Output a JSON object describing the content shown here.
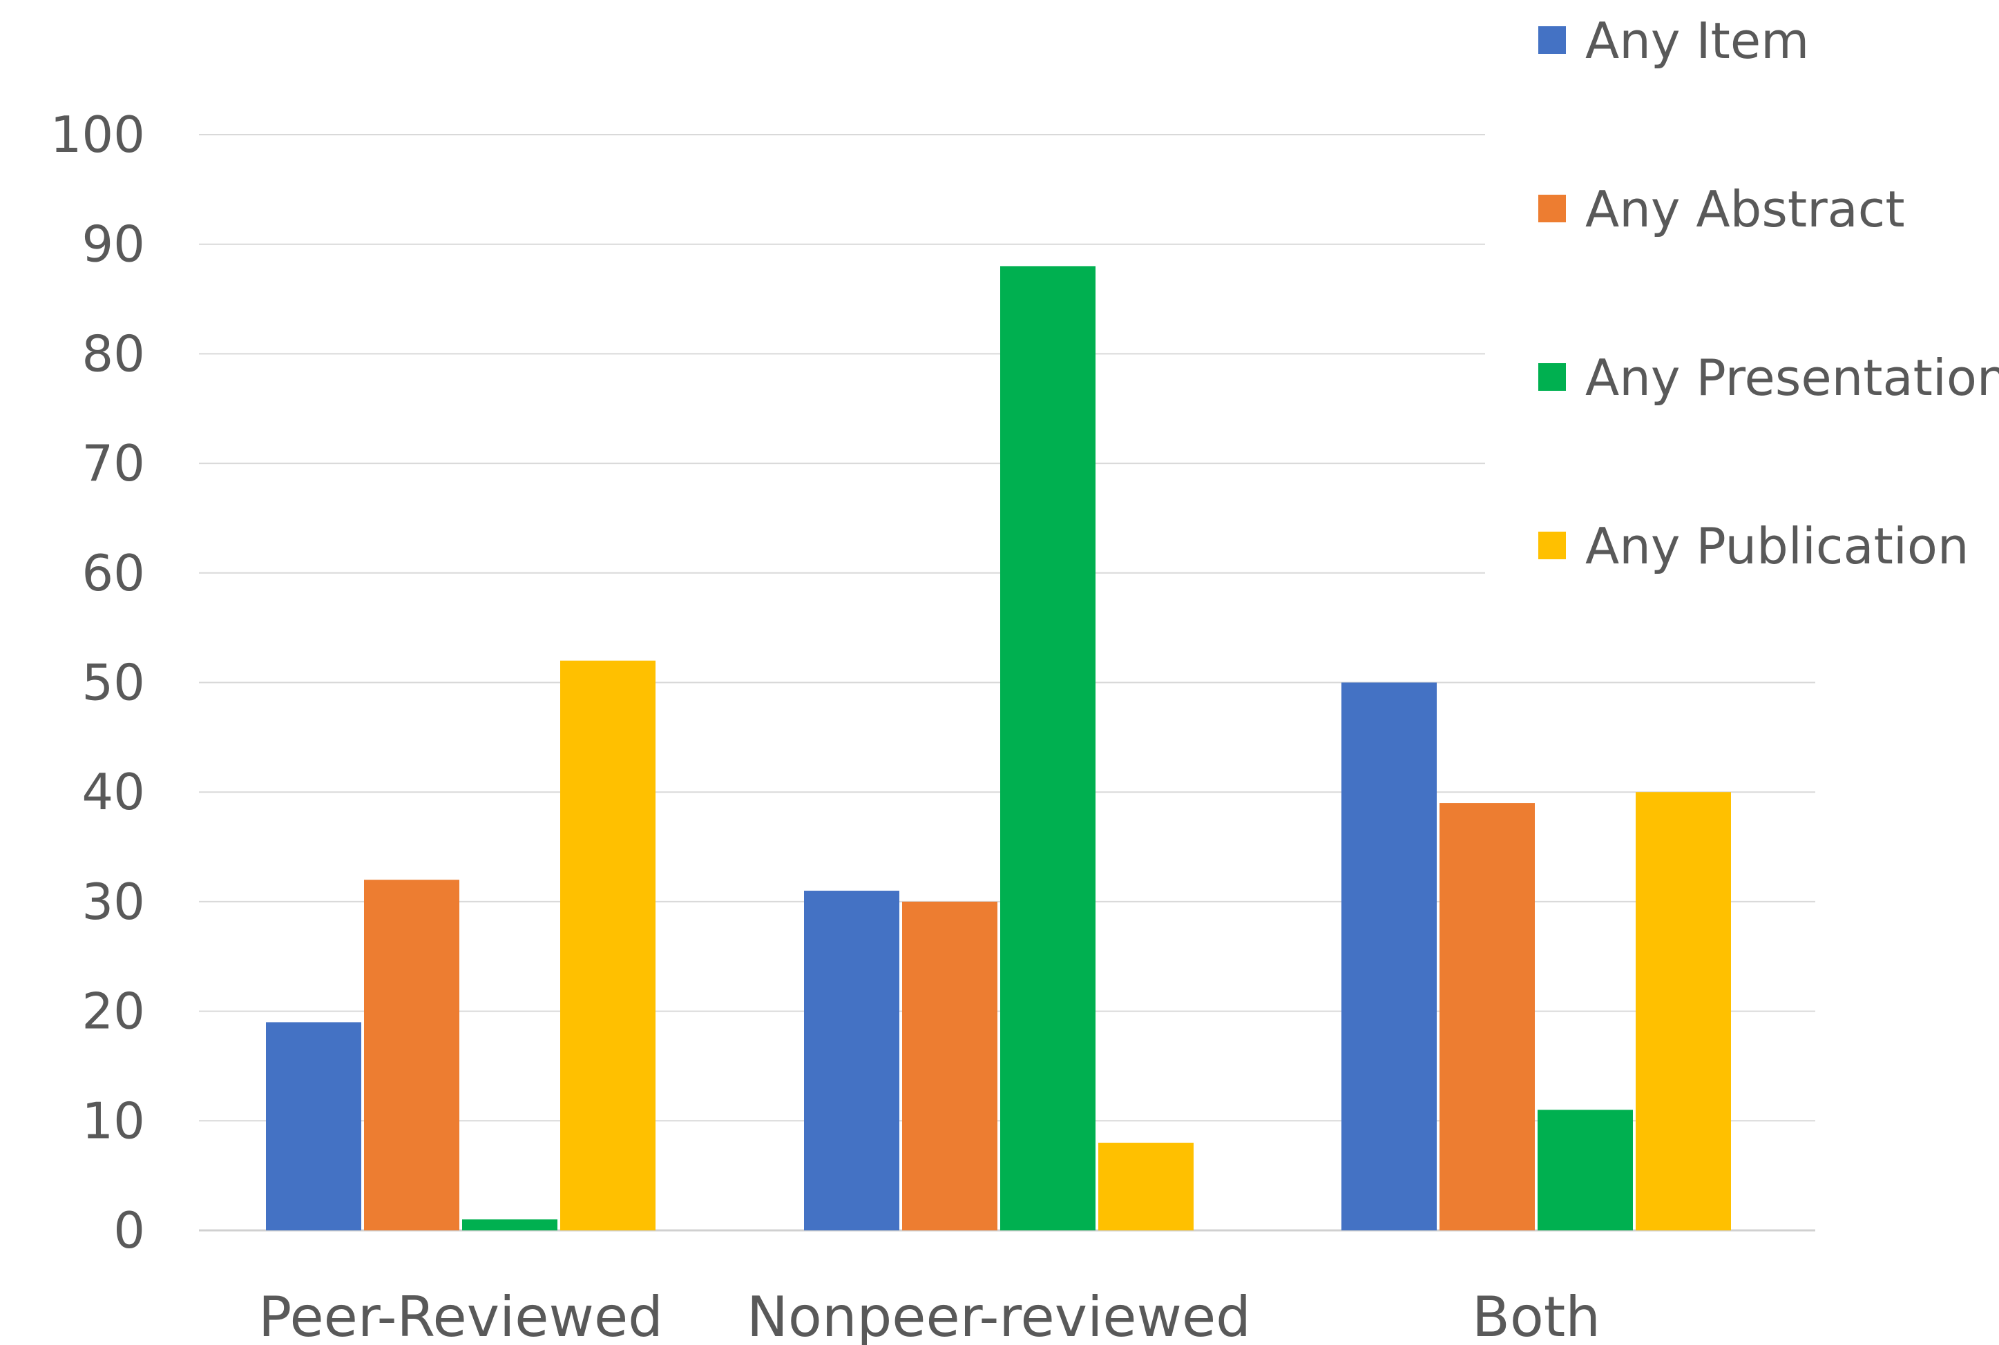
{
  "chart_data": {
    "type": "bar",
    "categories": [
      "Peer-Reviewed",
      "Nonpeer-reviewed",
      "Both"
    ],
    "series": [
      {
        "name": "Any Item",
        "color": "#4472C4",
        "values": [
          19,
          31,
          50
        ]
      },
      {
        "name": "Any Abstract",
        "color": "#ED7D31",
        "values": [
          32,
          30,
          39
        ]
      },
      {
        "name": "Any Presentation",
        "color": "#00B050",
        "values": [
          1,
          88,
          11
        ]
      },
      {
        "name": "Any Publication",
        "color": "#FFC000",
        "values": [
          52,
          8,
          40
        ]
      }
    ],
    "ylim": [
      0,
      100
    ],
    "yticks": [
      0,
      10,
      20,
      30,
      40,
      50,
      60,
      70,
      80,
      90,
      100
    ],
    "grid": true,
    "legend_position": "top-right",
    "title": "",
    "xlabel": "",
    "ylabel": ""
  }
}
